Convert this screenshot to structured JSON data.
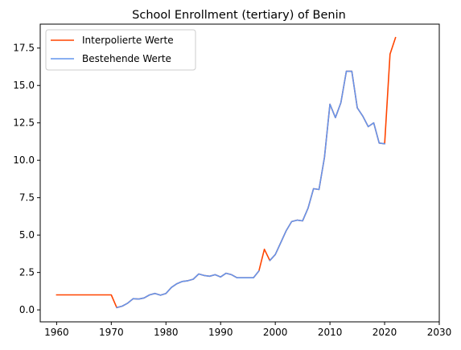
{
  "chart_data": {
    "type": "line",
    "title": "School Enrollment (tertiary) of Benin",
    "xlabel": "",
    "ylabel": "",
    "xlim": [
      1957,
      2030
    ],
    "ylim": [
      -0.8,
      19.1
    ],
    "xticks": [
      1960,
      1970,
      1980,
      1990,
      2000,
      2010,
      2020,
      2030
    ],
    "yticks": [
      0.0,
      2.5,
      5.0,
      7.5,
      10.0,
      12.5,
      15.0,
      17.5
    ],
    "ytick_labels": [
      "0.0",
      "2.5",
      "5.0",
      "7.5",
      "10.0",
      "12.5",
      "15.0",
      "17.5"
    ],
    "legend_position": "top-left",
    "grid": false,
    "series": [
      {
        "name": "Interpolierte Werte",
        "color": "#ff4500",
        "x": [
          1960,
          1961,
          1962,
          1963,
          1964,
          1965,
          1966,
          1967,
          1968,
          1969,
          1970,
          1971,
          1972,
          1973,
          1974,
          1975,
          1976,
          1977,
          1978,
          1979,
          1980,
          1981,
          1982,
          1983,
          1984,
          1985,
          1986,
          1987,
          1988,
          1989,
          1990,
          1991,
          1992,
          1993,
          1994,
          1995,
          1996,
          1997,
          1998,
          1999,
          2000,
          2001,
          2002,
          2003,
          2004,
          2005,
          2006,
          2007,
          2008,
          2009,
          2010,
          2011,
          2012,
          2013,
          2014,
          2015,
          2016,
          2017,
          2018,
          2019,
          2020,
          2021,
          2022
        ],
        "values": [
          1.0,
          1.0,
          1.0,
          1.0,
          1.0,
          1.0,
          1.0,
          1.0,
          1.0,
          1.0,
          1.0,
          0.15,
          0.25,
          0.45,
          0.75,
          0.72,
          0.8,
          1.0,
          1.1,
          0.98,
          1.1,
          1.5,
          1.75,
          1.9,
          1.95,
          2.05,
          2.4,
          2.3,
          2.25,
          2.35,
          2.2,
          2.45,
          2.35,
          2.15,
          2.15,
          2.15,
          2.15,
          2.6,
          4.05,
          3.3,
          3.7,
          4.5,
          5.3,
          5.9,
          6.0,
          5.95,
          6.8,
          8.1,
          8.05,
          10.2,
          13.75,
          12.85,
          13.85,
          15.95,
          15.95,
          13.5,
          12.95,
          12.25,
          12.5,
          11.15,
          11.1,
          17.1,
          18.2
        ]
      },
      {
        "name": "Bestehende Werte",
        "color": "#6495ed",
        "x": [
          1971,
          1972,
          1973,
          1974,
          1975,
          1976,
          1977,
          1978,
          1979,
          1980,
          1981,
          1982,
          1983,
          1984,
          1985,
          1986,
          1987,
          1988,
          1989,
          1990,
          1991,
          1992,
          1993,
          1994,
          1995,
          1996,
          1997,
          null,
          1999,
          2000,
          2001,
          2002,
          2003,
          2004,
          2005,
          2006,
          2007,
          2008,
          2009,
          2010,
          2011,
          2012,
          2013,
          2014,
          2015,
          2016,
          2017,
          2018,
          2019,
          2020
        ],
        "values": [
          0.15,
          0.25,
          0.45,
          0.75,
          0.72,
          0.8,
          1.0,
          1.1,
          0.98,
          1.1,
          1.5,
          1.75,
          1.9,
          1.95,
          2.05,
          2.4,
          2.3,
          2.25,
          2.35,
          2.2,
          2.45,
          2.35,
          2.15,
          2.15,
          2.15,
          2.15,
          2.6,
          null,
          3.3,
          3.7,
          4.5,
          5.3,
          5.9,
          6.0,
          5.95,
          6.8,
          8.1,
          8.05,
          10.2,
          13.75,
          12.85,
          13.85,
          15.95,
          15.95,
          13.5,
          12.95,
          12.25,
          12.5,
          11.15,
          11.1
        ]
      }
    ]
  }
}
